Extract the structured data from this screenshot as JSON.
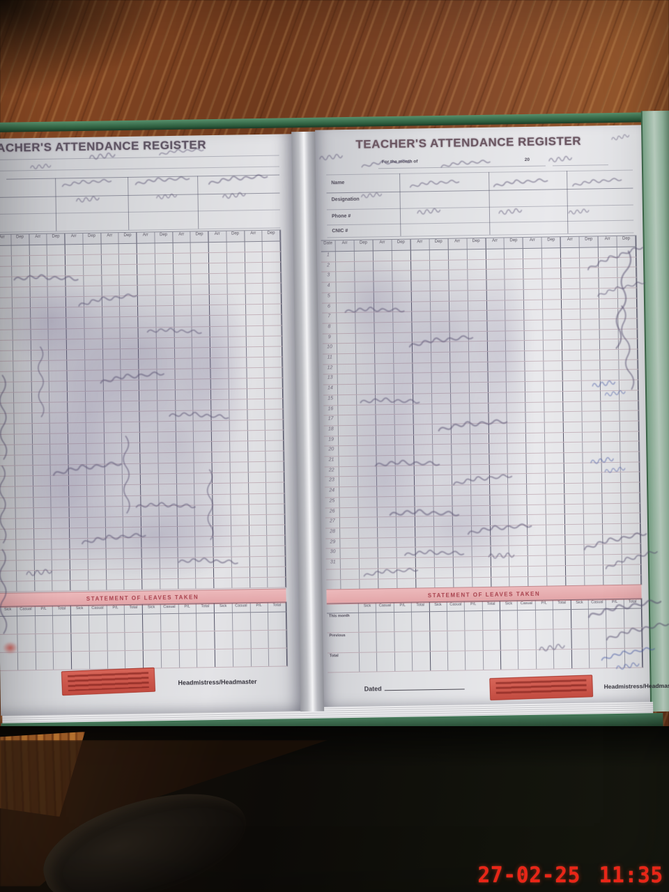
{
  "camera": {
    "timestamp": "27-02-25 11:35"
  },
  "register": {
    "title": "TEACHER'S ATTENDANCE REGISTER",
    "month_line": {
      "label": "For the month of",
      "year_prefix": "20"
    },
    "info_fields": [
      {
        "label": "Name"
      },
      {
        "label": "Designation"
      },
      {
        "label": "Phone #"
      },
      {
        "label": "CNIC #"
      }
    ],
    "attendance_grid": {
      "date_column_label": "Date",
      "session_labels": [
        "Arr",
        "Dep"
      ],
      "pairs": 8,
      "rows": 33,
      "day_numbers": [
        1,
        2,
        3,
        4,
        5,
        6,
        7,
        8,
        9,
        10,
        11,
        12,
        13,
        14,
        15,
        16,
        17,
        18,
        19,
        20,
        21,
        22,
        23,
        24,
        25,
        26,
        27,
        28,
        29,
        30,
        31
      ]
    },
    "leaves_section": {
      "title": "STATEMENT OF LEAVES TAKEN",
      "column_labels": [
        "Sick",
        "Casual",
        "P/L",
        "Total"
      ],
      "groups": 4,
      "row_labels": [
        "This month",
        "Previous",
        "Total"
      ]
    },
    "footer": {
      "dated_label": "Dated",
      "signature_label": "Headmistress/Headmaster"
    },
    "colors": {
      "cover_green": "#2f6b47",
      "band_pink": "#e7b2b4",
      "band_text": "#a8414d",
      "stamp_red": "#c9473c",
      "timestamp_red": "#ea2517",
      "ink_purple": "#5d5675",
      "ink_blue": "#4a5ca6"
    }
  }
}
